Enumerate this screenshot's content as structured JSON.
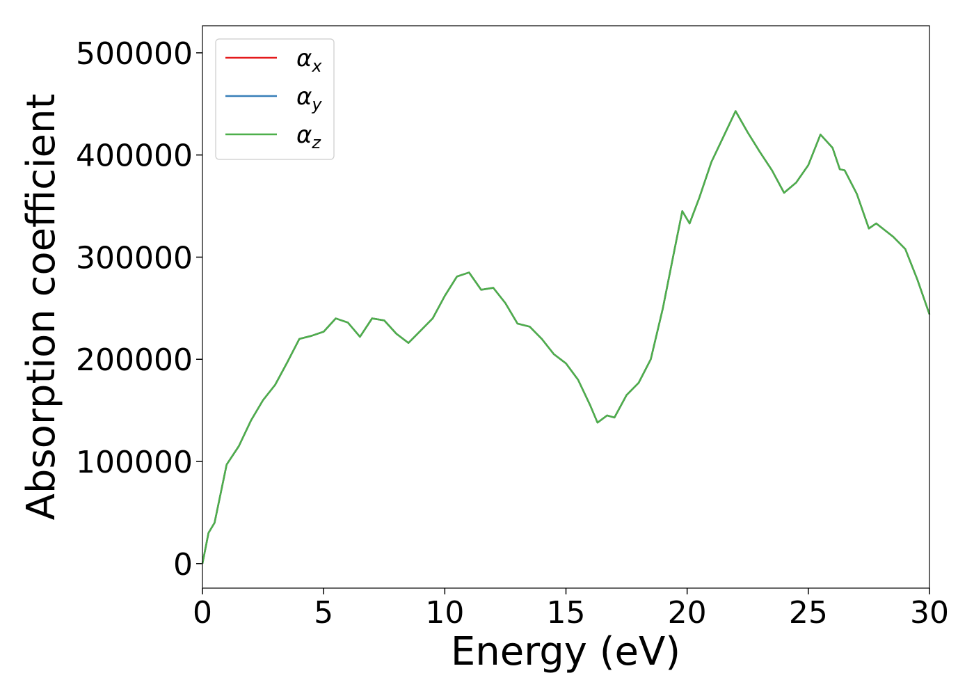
{
  "chart_data": {
    "type": "line",
    "xlabel": "Energy (eV)",
    "ylabel": "Absorption coefficient",
    "x": [
      0,
      0.25,
      0.5,
      1,
      1.5,
      2,
      2.5,
      3,
      3.5,
      4,
      4.5,
      5,
      5.5,
      6,
      6.5,
      7,
      7.5,
      8,
      8.5,
      9,
      9.5,
      10,
      10.5,
      11,
      11.5,
      12,
      12.5,
      13,
      13.5,
      14,
      14.5,
      15,
      15.5,
      16,
      16.3,
      16.7,
      17,
      17.5,
      18,
      18.5,
      19,
      19.5,
      19.8,
      20.1,
      20.5,
      21,
      21.5,
      22,
      22.5,
      23,
      23.5,
      24,
      24.5,
      25,
      25.5,
      26,
      26.3,
      26.5,
      27,
      27.5,
      27.8,
      28.5,
      29,
      29.5,
      30
    ],
    "series": [
      {
        "name": "αx",
        "color": "#e41a1c",
        "values": [
          0,
          30000,
          40000,
          97000,
          115000,
          140000,
          160000,
          175000,
          197000,
          220000,
          223000,
          227000,
          240000,
          236000,
          222000,
          240000,
          238000,
          225000,
          216000,
          228000,
          240000,
          262000,
          281000,
          285000,
          268000,
          270000,
          255000,
          235000,
          232000,
          220000,
          205000,
          196000,
          180000,
          155000,
          138000,
          145000,
          143000,
          165000,
          177000,
          200000,
          250000,
          310000,
          345000,
          333000,
          358000,
          393000,
          418000,
          443000,
          422000,
          403000,
          385000,
          363000,
          373000,
          390000,
          420000,
          407000,
          386000,
          385000,
          362000,
          328000,
          333000,
          320000,
          308000,
          278000,
          244000
        ]
      },
      {
        "name": "αy",
        "color": "#377eb8",
        "values": [
          0,
          30000,
          40000,
          97000,
          115000,
          140000,
          160000,
          175000,
          197000,
          220000,
          223000,
          227000,
          240000,
          236000,
          222000,
          240000,
          238000,
          225000,
          216000,
          228000,
          240000,
          262000,
          281000,
          285000,
          268000,
          270000,
          255000,
          235000,
          232000,
          220000,
          205000,
          196000,
          180000,
          155000,
          138000,
          145000,
          143000,
          165000,
          177000,
          200000,
          250000,
          310000,
          345000,
          333000,
          358000,
          393000,
          418000,
          443000,
          422000,
          403000,
          385000,
          363000,
          373000,
          390000,
          420000,
          407000,
          386000,
          385000,
          362000,
          328000,
          333000,
          320000,
          308000,
          278000,
          244000
        ]
      },
      {
        "name": "αz",
        "color": "#4daf4a",
        "values": [
          0,
          30000,
          40000,
          97000,
          115000,
          140000,
          160000,
          175000,
          197000,
          220000,
          223000,
          227000,
          240000,
          236000,
          222000,
          240000,
          238000,
          225000,
          216000,
          228000,
          240000,
          262000,
          281000,
          285000,
          268000,
          270000,
          255000,
          235000,
          232000,
          220000,
          205000,
          196000,
          180000,
          155000,
          138000,
          145000,
          143000,
          165000,
          177000,
          200000,
          250000,
          310000,
          345000,
          333000,
          358000,
          393000,
          418000,
          443000,
          422000,
          403000,
          385000,
          363000,
          373000,
          390000,
          420000,
          407000,
          386000,
          385000,
          362000,
          328000,
          333000,
          320000,
          308000,
          278000,
          244000
        ]
      }
    ],
    "xlim": [
      0,
      30
    ],
    "xticks": [
      0,
      5,
      10,
      15,
      20,
      25,
      30
    ],
    "ylim": [
      -24000,
      526500
    ],
    "yticks": [
      0,
      100000,
      200000,
      300000,
      400000,
      500000
    ],
    "legend": "upper left",
    "grid": false
  }
}
